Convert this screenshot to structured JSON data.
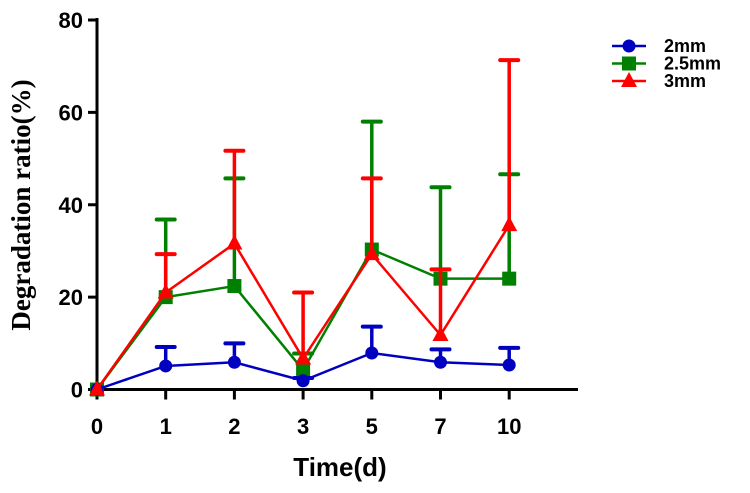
{
  "chart_data": {
    "type": "line",
    "title": "",
    "xlabel": "Time(d)",
    "ylabel": "Degradation ratio(%)",
    "categories": [
      "0",
      "1",
      "2",
      "3",
      "5",
      "7",
      "10"
    ],
    "ylim": [
      0,
      80
    ],
    "yticks": [
      "0",
      "20",
      "40",
      "60",
      "80"
    ],
    "grid": false,
    "legend_position": "top-right",
    "series": [
      {
        "name": "2mm",
        "color": "#0000c0",
        "marker": "circle",
        "values": [
          0,
          5.1,
          5.9,
          1.9,
          7.9,
          5.9,
          5.3
        ],
        "error_upper": [
          0,
          9.2,
          10.0,
          2.5,
          13.6,
          8.7,
          9.0
        ]
      },
      {
        "name": "2.5mm",
        "color": "#008000",
        "marker": "square",
        "values": [
          0,
          20.0,
          22.4,
          4.2,
          30.3,
          24.0,
          24.0
        ],
        "error_upper": [
          0,
          36.8,
          45.7,
          7.8,
          58.0,
          43.8,
          46.6
        ]
      },
      {
        "name": "3mm",
        "color": "#ff0000",
        "marker": "triangle",
        "values": [
          0,
          21.0,
          31.6,
          6.7,
          29.3,
          11.8,
          35.6
        ],
        "error_upper": [
          0,
          29.3,
          51.7,
          21.0,
          45.7,
          26.0,
          71.3
        ]
      }
    ]
  }
}
